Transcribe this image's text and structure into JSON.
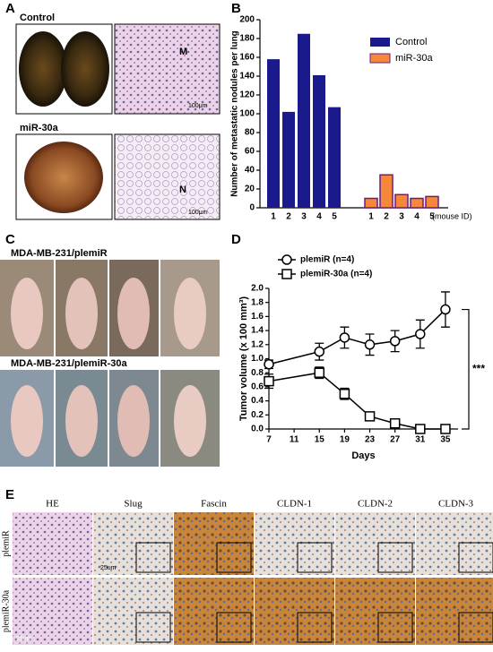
{
  "panels": {
    "letters": [
      "A",
      "B",
      "C",
      "D",
      "E"
    ],
    "a": {
      "top_label": "Control",
      "bottom_label": "miR-30a",
      "top_mark": "M",
      "bottom_mark": "N",
      "scale_top": "100μm",
      "scale_bottom": "100μm"
    },
    "c": {
      "top_label": "MDA-MB-231/plemiR",
      "bottom_label": "MDA-MB-231/plemiR-30a"
    },
    "e": {
      "columns": [
        "HE",
        "Slug",
        "Fascin",
        "CLDN-1",
        "CLDN-2",
        "CLDN-3"
      ],
      "rows": [
        "plemiR",
        "plemiR-30a"
      ],
      "scale_top": "25um",
      "scale_bottom": "25um"
    }
  },
  "chart_data": [
    {
      "type": "bar",
      "y_label": "Number of metastatic nodules per lung",
      "x_label": "(mouse ID)",
      "categories": [
        "1",
        "2",
        "3",
        "4",
        "5"
      ],
      "series": [
        {
          "name": "Control",
          "color": "#1a1a8c",
          "values": [
            158,
            102,
            185,
            141,
            107
          ]
        },
        {
          "name": "miR-30a",
          "color": "#f5883a",
          "values": [
            10,
            35,
            14,
            10,
            12
          ]
        }
      ],
      "ylim": [
        0,
        200
      ],
      "yticks": [
        0,
        20,
        40,
        60,
        80,
        100,
        120,
        140,
        160,
        180,
        200
      ],
      "legend": "top-right"
    },
    {
      "type": "line",
      "y_label": "Tumor volume (x 100 mm³)",
      "x_label": "Days",
      "annotation": "***",
      "x": [
        7,
        15,
        19,
        23,
        27,
        31,
        35
      ],
      "series": [
        {
          "name": "plemiR (n=4)",
          "marker": "circle",
          "color": "#000",
          "values": [
            0.92,
            1.1,
            1.3,
            1.2,
            1.25,
            1.35,
            1.7
          ],
          "errors": [
            0.06,
            0.12,
            0.15,
            0.15,
            0.15,
            0.2,
            0.25
          ]
        },
        {
          "name": "plemiR-30a (n=4)",
          "marker": "square",
          "color": "#000",
          "values": [
            0.68,
            0.8,
            0.5,
            0.18,
            0.08,
            0,
            0
          ],
          "errors": [
            0.1,
            0.08,
            0.08,
            0.04,
            0.02,
            0,
            0
          ]
        }
      ],
      "xlim": [
        7,
        37
      ],
      "xticks": [
        7,
        11,
        15,
        19,
        23,
        27,
        31,
        35
      ],
      "ylim": [
        0,
        2
      ],
      "yticks": [
        {
          "value": 0,
          "label": "0.0"
        },
        {
          "value": 0.2,
          "label": "0.2"
        },
        {
          "value": 0.4,
          "label": "0.4"
        },
        {
          "value": 0.6,
          "label": "0.6"
        },
        {
          "value": 0.8,
          "label": "0.8"
        },
        {
          "value": 1,
          "label": "1.0"
        },
        {
          "value": 1.2,
          "label": "1.2"
        },
        {
          "value": 1.4,
          "label": "1.4"
        },
        {
          "value": 1.6,
          "label": "1.6"
        },
        {
          "value": 1.8,
          "label": "1.8"
        },
        {
          "value": 2,
          "label": "2.0"
        }
      ],
      "legend": "top-left"
    }
  ]
}
